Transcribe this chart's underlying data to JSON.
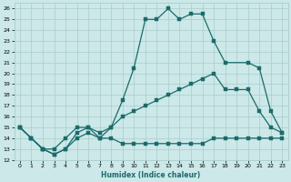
{
  "xlabel": "Humidex (Indice chaleur)",
  "bg_color": "#cce8e8",
  "grid_color": "#aacccc",
  "line_color": "#1a6b6b",
  "xlim": [
    -0.5,
    23.5
  ],
  "ylim": [
    12,
    27
  ],
  "xtick_labels": [
    "0",
    "1",
    "2",
    "3",
    "4",
    "5",
    "6",
    "7",
    "8",
    "9",
    "10",
    "11",
    "12",
    "13",
    "14",
    "15",
    "16",
    "17",
    "18",
    "19",
    "20",
    "21",
    "22",
    "23"
  ],
  "xticks": [
    0,
    1,
    2,
    3,
    4,
    5,
    6,
    7,
    8,
    9,
    10,
    11,
    12,
    13,
    14,
    15,
    16,
    17,
    18,
    19,
    20,
    21,
    22,
    23
  ],
  "yticks": [
    12,
    13,
    14,
    15,
    16,
    17,
    18,
    19,
    20,
    21,
    22,
    23,
    24,
    25,
    26
  ],
  "series1_x": [
    0,
    1,
    2,
    3,
    4,
    5,
    6,
    7,
    8,
    9,
    10,
    11,
    12,
    13,
    14,
    15,
    16,
    17,
    18,
    20,
    21,
    22,
    23
  ],
  "series1_y": [
    15,
    14,
    13,
    13,
    14,
    15,
    15,
    14,
    15,
    17.5,
    20.5,
    25,
    25,
    26,
    25,
    25.5,
    25.5,
    23,
    21,
    21,
    20.5,
    16.5,
    14.5
  ],
  "series2_x": [
    0,
    1,
    2,
    3,
    4,
    5,
    6,
    7,
    8,
    9,
    10,
    11,
    12,
    13,
    14,
    15,
    16,
    17,
    18,
    19,
    20,
    21,
    22,
    23
  ],
  "series2_y": [
    15,
    14,
    13,
    12.5,
    13,
    14,
    14.5,
    14,
    14,
    13.5,
    13.5,
    13.5,
    13.5,
    13.5,
    13.5,
    13.5,
    13.5,
    14,
    14,
    14,
    14,
    14,
    14,
    14
  ],
  "series3_x": [
    0,
    1,
    2,
    3,
    4,
    5,
    6,
    7,
    8,
    9,
    10,
    11,
    12,
    13,
    14,
    15,
    16,
    17,
    18,
    19,
    20,
    21,
    22,
    23
  ],
  "series3_y": [
    15,
    14,
    13,
    12.5,
    13,
    14.5,
    15,
    14.5,
    15,
    16,
    16.5,
    17,
    17.5,
    18,
    18.5,
    19,
    19.5,
    20,
    18.5,
    18.5,
    18.5,
    16.5,
    15,
    14.5
  ]
}
